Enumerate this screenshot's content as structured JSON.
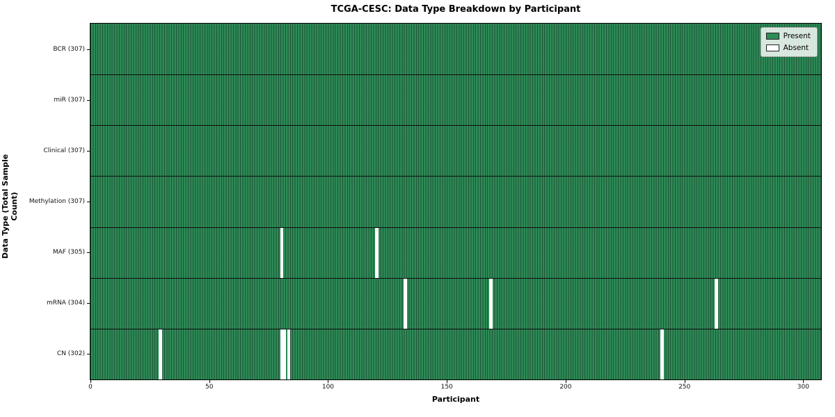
{
  "chart_data": {
    "type": "heatmap",
    "title": "TCGA-CESC: Data Type Breakdown by Participant",
    "xlabel": "Participant",
    "ylabel": "Data Type (Total Sample Count)",
    "x_ticks": [
      0,
      50,
      100,
      150,
      200,
      250,
      300
    ],
    "xlim": [
      0,
      307.5
    ],
    "n_participants": 307,
    "legend": [
      {
        "label": "Present",
        "color": "#2e8b57"
      },
      {
        "label": "Absent",
        "color": "#ffffff"
      }
    ],
    "colors": {
      "present": "#2e8b57",
      "absent": "#ffffff",
      "bar_edge": "rgba(0,0,0,0.40)",
      "row_divider": "#0d0d0d"
    },
    "rows": [
      {
        "label": "BCR (307)",
        "data_type": "BCR",
        "total": 307,
        "absent_participants": []
      },
      {
        "label": "miR (307)",
        "data_type": "miR",
        "total": 307,
        "absent_participants": []
      },
      {
        "label": "Clinical (307)",
        "data_type": "Clinical",
        "total": 307,
        "absent_participants": []
      },
      {
        "label": "Methylation (307)",
        "data_type": "Methylation",
        "total": 307,
        "absent_participants": []
      },
      {
        "label": "MAF (305)",
        "data_type": "MAF",
        "total": 305,
        "absent_participants": [
          80,
          120
        ]
      },
      {
        "label": "mRNA (304)",
        "data_type": "mRNA",
        "total": 304,
        "absent_participants": [
          132,
          168,
          263
        ]
      },
      {
        "label": "CN (302)",
        "data_type": "CN",
        "total": 302,
        "absent_participants": [
          29,
          80,
          81,
          83,
          240
        ]
      }
    ]
  }
}
